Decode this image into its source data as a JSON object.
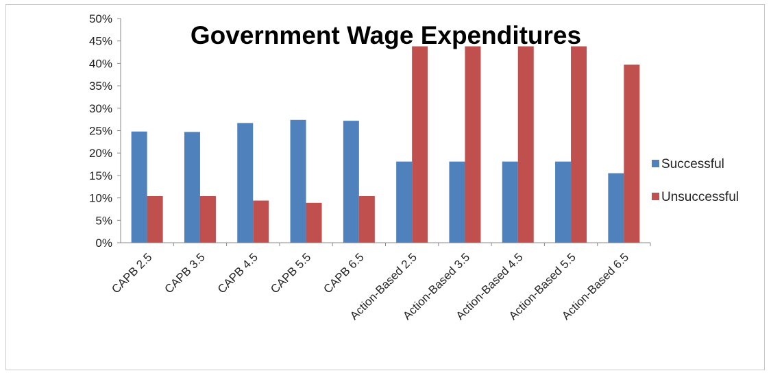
{
  "chart_data": {
    "type": "bar",
    "title": "Government Wage Expenditures",
    "xlabel": "",
    "ylabel": "",
    "ylim": [
      0,
      50
    ],
    "yticks": [
      "0%",
      "5%",
      "10%",
      "15%",
      "20%",
      "25%",
      "30%",
      "35%",
      "40%",
      "45%",
      "50%"
    ],
    "grid": false,
    "legend_position": "right",
    "categories": [
      "CAPB 2.5",
      "CAPB 3.5",
      "CAPB 4.5",
      "CAPB 5.5",
      "CAPB 6.5",
      "Action-Based 2.5",
      "Action-Based 3.5",
      "Action-Based 4.5",
      "Action-Based 5.5",
      "Action-Based 6.5"
    ],
    "series": [
      {
        "name": "Successful",
        "color": "#4f81bd",
        "values": [
          24.8,
          24.7,
          26.7,
          27.4,
          27.2,
          18.1,
          18.1,
          18.1,
          18.1,
          15.5
        ]
      },
      {
        "name": "Unsuccessful",
        "color": "#c0504d",
        "values": [
          10.4,
          10.4,
          9.4,
          8.9,
          10.4,
          43.8,
          43.8,
          43.8,
          43.8,
          39.7
        ]
      }
    ]
  }
}
